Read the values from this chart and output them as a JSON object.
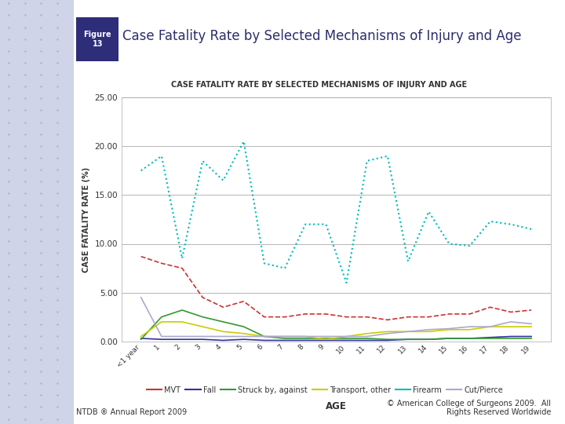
{
  "title_main": "Case Fatality Rate by Selected Mechanisms of Injury and Age",
  "title_chart": "CASE FATALITY RATE BY SELECTED MECHANISMS OF INJURY AND AGE",
  "xlabel": "AGE",
  "ylabel": "CASE FATALITY RATE (%)",
  "figure_label": "Figure\n13",
  "footer_left": "NTDB ® Annual Report 2009",
  "footer_right": "© American College of Surgeons 2009.  All\nRights Reserved Worldwide",
  "x_labels": [
    "<1 year",
    "1",
    "2",
    "3",
    "4",
    "5",
    "6",
    "7",
    "8",
    "9",
    "10",
    "11",
    "12",
    "13",
    "14",
    "15",
    "16",
    "17",
    "18",
    "19"
  ],
  "ylim": [
    0,
    25
  ],
  "yticks": [
    0.0,
    5.0,
    10.0,
    15.0,
    20.0,
    25.0
  ],
  "series": {
    "MVT": {
      "color": "#cc3333",
      "linestyle": "--",
      "linewidth": 1.2,
      "values": [
        8.7,
        8.0,
        7.5,
        4.5,
        3.5,
        4.1,
        2.5,
        2.5,
        2.8,
        2.8,
        2.5,
        2.5,
        2.2,
        2.5,
        2.5,
        2.8,
        2.8,
        3.5,
        3.0,
        3.2
      ]
    },
    "Fall": {
      "color": "#333399",
      "linestyle": "-",
      "linewidth": 1.2,
      "values": [
        0.3,
        0.2,
        0.2,
        0.2,
        0.1,
        0.2,
        0.1,
        0.1,
        0.1,
        0.1,
        0.1,
        0.1,
        0.1,
        0.2,
        0.2,
        0.3,
        0.3,
        0.4,
        0.5,
        0.5
      ]
    },
    "Struck by, against": {
      "color": "#339933",
      "linestyle": "-",
      "linewidth": 1.2,
      "values": [
        0.2,
        2.5,
        3.2,
        2.5,
        2.0,
        1.5,
        0.5,
        0.3,
        0.3,
        0.3,
        0.3,
        0.3,
        0.2,
        0.2,
        0.2,
        0.3,
        0.3,
        0.3,
        0.3,
        0.3
      ]
    },
    "Transport, other": {
      "color": "#cccc00",
      "linestyle": "-",
      "linewidth": 1.2,
      "values": [
        0.5,
        2.0,
        2.0,
        1.5,
        1.0,
        0.8,
        0.5,
        0.5,
        0.5,
        0.2,
        0.5,
        0.8,
        1.0,
        1.0,
        1.0,
        1.2,
        1.2,
        1.5,
        1.5,
        1.5
      ]
    },
    "Firearm": {
      "color": "#00bbbb",
      "linestyle": ":",
      "linewidth": 1.5,
      "values": [
        17.5,
        19.0,
        8.5,
        18.5,
        16.5,
        20.5,
        8.0,
        7.5,
        12.0,
        12.0,
        6.0,
        18.5,
        19.0,
        8.2,
        13.3,
        10.0,
        9.8,
        12.3,
        12.0,
        11.5
      ]
    },
    "Cut/Pierce": {
      "color": "#aaaacc",
      "linestyle": "-",
      "linewidth": 1.2,
      "values": [
        4.5,
        0.5,
        0.5,
        0.5,
        0.5,
        0.5,
        0.5,
        0.5,
        0.5,
        0.5,
        0.5,
        0.5,
        0.8,
        1.0,
        1.2,
        1.3,
        1.5,
        1.5,
        2.0,
        1.8
      ]
    }
  },
  "background_color": "#ffffff",
  "plot_bg": "#ffffff",
  "grid_color": "#aaaaaa",
  "title_color": "#2d2d6e",
  "figure_box_color": "#2d2d7a",
  "figure_box_text_color": "#ffffff",
  "left_bg_color": "#d0d4e8",
  "dot_color": "#b0b5cc"
}
